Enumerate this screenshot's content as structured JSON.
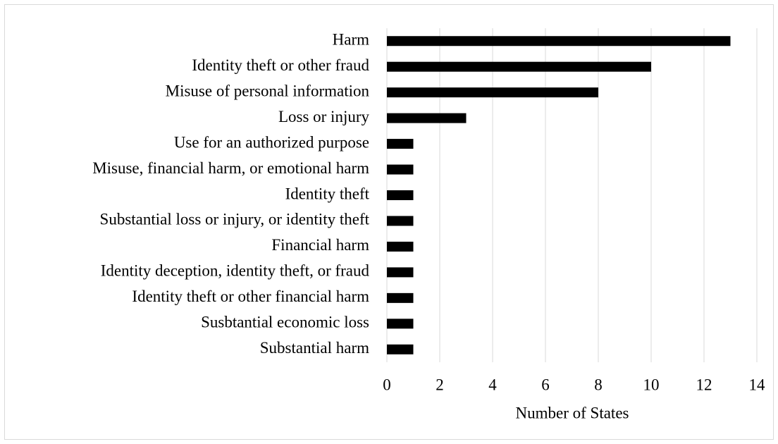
{
  "chart_data": {
    "type": "bar",
    "orientation": "horizontal",
    "x_label": "Number of States",
    "categories": [
      "Harm",
      "Identity theft or other fraud",
      "Misuse of personal information",
      "Loss or injury",
      "Use for an authorized purpose",
      "Misuse, financial harm, or emotional harm",
      "Identity theft",
      "Substantial loss or injury, or identity theft",
      "Financial harm",
      "Identity deception, identity theft, or fraud",
      "Identity theft or other financial harm",
      "Susbtantial economic loss",
      "Substantial harm"
    ],
    "values": [
      13,
      10,
      8,
      3,
      1,
      1,
      1,
      1,
      1,
      1,
      1,
      1,
      1
    ],
    "color": "#000000",
    "xlim": [
      0,
      14
    ],
    "xticks": [
      0,
      2,
      4,
      6,
      8,
      10,
      12,
      14
    ],
    "grid": true
  }
}
